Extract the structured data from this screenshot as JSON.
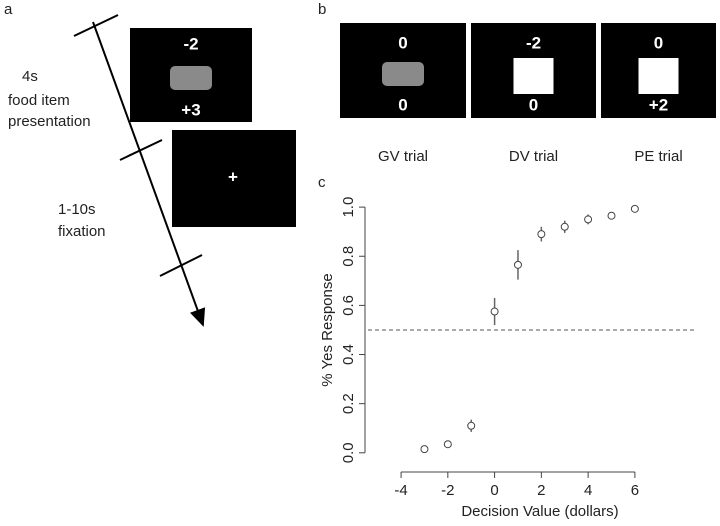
{
  "panel_a": {
    "label": "a",
    "screen1_top": "-2",
    "screen1_bottom": "+3",
    "fixation_cross": "+",
    "duration1": "4s",
    "desc1_line1": "food item",
    "desc1_line2": "presentation",
    "duration2": "1-10s",
    "desc2": "fixation"
  },
  "panel_b": {
    "label": "b",
    "trials": [
      {
        "top": "0",
        "bottom": "0",
        "name": "GV trial"
      },
      {
        "top": "-2",
        "bottom": "0",
        "name": "DV trial"
      },
      {
        "top": "0",
        "bottom": "+2",
        "name": "PE trial"
      }
    ]
  },
  "chart_data": {
    "type": "scatter",
    "panel_label": "c",
    "x_label": "Decision Value (dollars)",
    "y_label": "% Yes Response",
    "x": [
      -3,
      -2,
      -1,
      0,
      1,
      2,
      3,
      4,
      5,
      6
    ],
    "values": [
      0.015,
      0.035,
      0.11,
      0.575,
      0.765,
      0.89,
      0.92,
      0.95,
      0.965,
      0.993
    ],
    "errors": [
      0.01,
      0.015,
      0.025,
      0.055,
      0.06,
      0.03,
      0.025,
      0.02,
      0.015,
      0.01
    ],
    "hline": 0.5,
    "xlim": [
      -5.5,
      8.7
    ],
    "ylim": [
      -0.07,
      1.09
    ],
    "xticks": [
      -4,
      -2,
      0,
      2,
      4,
      6
    ],
    "yticks": [
      {
        "value": 0,
        "label": "0.0"
      },
      0.2,
      0.4,
      0.6,
      0.8,
      {
        "value": 1,
        "label": "1.0"
      }
    ]
  }
}
